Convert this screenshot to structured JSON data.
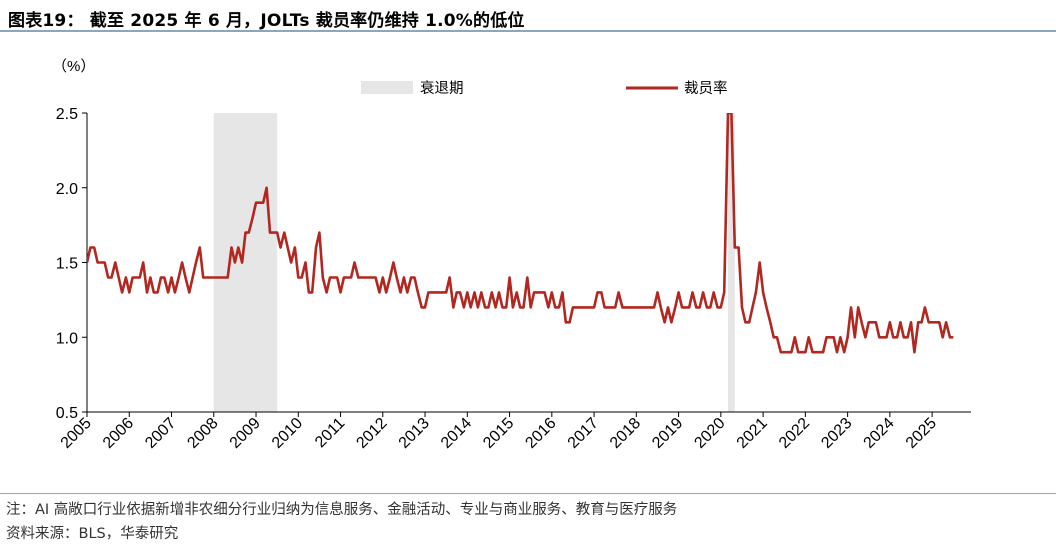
{
  "title": "图表19： 截至 2025 年 6 月，JOLTs 裁员率仍维持 1.0%的低位",
  "note": "注：AI 高敞口行业依据新增非农细分行业归纳为信息服务、金融活动、专业与商业服务、教育与医疗服务",
  "source": "资料来源：BLS，华泰研究",
  "chart_data": {
    "type": "line",
    "unit_label": "（%）",
    "ylim": [
      0.5,
      2.5
    ],
    "yticks": [
      "0.5",
      "1.0",
      "1.5",
      "2.0",
      "2.5"
    ],
    "xlim": [
      2005.0,
      2025.92
    ],
    "xticks": [
      "2005",
      "2006",
      "2007",
      "2008",
      "2009",
      "2010",
      "2011",
      "2012",
      "2013",
      "2014",
      "2015",
      "2016",
      "2017",
      "2018",
      "2019",
      "2020",
      "2021",
      "2022",
      "2023",
      "2024",
      "2025"
    ],
    "grid": false,
    "legend_position": "top",
    "recessions": {
      "name": "衰退期",
      "color": "#e6e6e6",
      "periods": [
        [
          2008.0,
          2009.5
        ],
        [
          2020.17,
          2020.33
        ]
      ]
    },
    "series": [
      {
        "name": "裁员率",
        "color": "#b2271f",
        "points": [
          [
            2005.0,
            1.5
          ],
          [
            2005.08,
            1.6
          ],
          [
            2005.17,
            1.6
          ],
          [
            2005.25,
            1.5
          ],
          [
            2005.33,
            1.5
          ],
          [
            2005.42,
            1.5
          ],
          [
            2005.5,
            1.4
          ],
          [
            2005.58,
            1.4
          ],
          [
            2005.67,
            1.5
          ],
          [
            2005.75,
            1.4
          ],
          [
            2005.83,
            1.3
          ],
          [
            2005.92,
            1.4
          ],
          [
            2006.0,
            1.3
          ],
          [
            2006.08,
            1.4
          ],
          [
            2006.17,
            1.4
          ],
          [
            2006.25,
            1.4
          ],
          [
            2006.33,
            1.5
          ],
          [
            2006.42,
            1.3
          ],
          [
            2006.5,
            1.4
          ],
          [
            2006.58,
            1.3
          ],
          [
            2006.67,
            1.3
          ],
          [
            2006.75,
            1.4
          ],
          [
            2006.83,
            1.4
          ],
          [
            2006.92,
            1.3
          ],
          [
            2007.0,
            1.4
          ],
          [
            2007.08,
            1.3
          ],
          [
            2007.17,
            1.4
          ],
          [
            2007.25,
            1.5
          ],
          [
            2007.33,
            1.4
          ],
          [
            2007.42,
            1.3
          ],
          [
            2007.5,
            1.4
          ],
          [
            2007.58,
            1.5
          ],
          [
            2007.67,
            1.6
          ],
          [
            2007.75,
            1.4
          ],
          [
            2007.83,
            1.4
          ],
          [
            2007.92,
            1.4
          ],
          [
            2008.0,
            1.4
          ],
          [
            2008.08,
            1.4
          ],
          [
            2008.17,
            1.4
          ],
          [
            2008.25,
            1.4
          ],
          [
            2008.33,
            1.4
          ],
          [
            2008.42,
            1.6
          ],
          [
            2008.5,
            1.5
          ],
          [
            2008.58,
            1.6
          ],
          [
            2008.67,
            1.5
          ],
          [
            2008.75,
            1.7
          ],
          [
            2008.83,
            1.7
          ],
          [
            2008.92,
            1.8
          ],
          [
            2009.0,
            1.9
          ],
          [
            2009.08,
            1.9
          ],
          [
            2009.17,
            1.9
          ],
          [
            2009.25,
            2.0
          ],
          [
            2009.33,
            1.7
          ],
          [
            2009.42,
            1.7
          ],
          [
            2009.5,
            1.7
          ],
          [
            2009.58,
            1.6
          ],
          [
            2009.67,
            1.7
          ],
          [
            2009.75,
            1.6
          ],
          [
            2009.83,
            1.5
          ],
          [
            2009.92,
            1.6
          ],
          [
            2010.0,
            1.4
          ],
          [
            2010.08,
            1.4
          ],
          [
            2010.17,
            1.5
          ],
          [
            2010.25,
            1.3
          ],
          [
            2010.33,
            1.3
          ],
          [
            2010.42,
            1.6
          ],
          [
            2010.5,
            1.7
          ],
          [
            2010.58,
            1.4
          ],
          [
            2010.67,
            1.3
          ],
          [
            2010.75,
            1.4
          ],
          [
            2010.83,
            1.4
          ],
          [
            2010.92,
            1.4
          ],
          [
            2011.0,
            1.3
          ],
          [
            2011.08,
            1.4
          ],
          [
            2011.17,
            1.4
          ],
          [
            2011.25,
            1.4
          ],
          [
            2011.33,
            1.5
          ],
          [
            2011.42,
            1.4
          ],
          [
            2011.5,
            1.4
          ],
          [
            2011.58,
            1.4
          ],
          [
            2011.67,
            1.4
          ],
          [
            2011.75,
            1.4
          ],
          [
            2011.83,
            1.4
          ],
          [
            2011.92,
            1.3
          ],
          [
            2012.0,
            1.4
          ],
          [
            2012.08,
            1.3
          ],
          [
            2012.17,
            1.4
          ],
          [
            2012.25,
            1.5
          ],
          [
            2012.33,
            1.4
          ],
          [
            2012.42,
            1.3
          ],
          [
            2012.5,
            1.4
          ],
          [
            2012.58,
            1.3
          ],
          [
            2012.67,
            1.4
          ],
          [
            2012.75,
            1.4
          ],
          [
            2012.83,
            1.3
          ],
          [
            2012.92,
            1.2
          ],
          [
            2013.0,
            1.2
          ],
          [
            2013.08,
            1.3
          ],
          [
            2013.17,
            1.3
          ],
          [
            2013.25,
            1.3
          ],
          [
            2013.33,
            1.3
          ],
          [
            2013.42,
            1.3
          ],
          [
            2013.5,
            1.3
          ],
          [
            2013.58,
            1.4
          ],
          [
            2013.67,
            1.2
          ],
          [
            2013.75,
            1.3
          ],
          [
            2013.83,
            1.3
          ],
          [
            2013.92,
            1.2
          ],
          [
            2014.0,
            1.3
          ],
          [
            2014.08,
            1.2
          ],
          [
            2014.17,
            1.3
          ],
          [
            2014.25,
            1.2
          ],
          [
            2014.33,
            1.3
          ],
          [
            2014.42,
            1.2
          ],
          [
            2014.5,
            1.2
          ],
          [
            2014.58,
            1.3
          ],
          [
            2014.67,
            1.2
          ],
          [
            2014.75,
            1.3
          ],
          [
            2014.83,
            1.2
          ],
          [
            2014.92,
            1.2
          ],
          [
            2015.0,
            1.4
          ],
          [
            2015.08,
            1.2
          ],
          [
            2015.17,
            1.3
          ],
          [
            2015.25,
            1.2
          ],
          [
            2015.33,
            1.2
          ],
          [
            2015.42,
            1.4
          ],
          [
            2015.5,
            1.2
          ],
          [
            2015.58,
            1.3
          ],
          [
            2015.67,
            1.3
          ],
          [
            2015.75,
            1.3
          ],
          [
            2015.83,
            1.3
          ],
          [
            2015.92,
            1.2
          ],
          [
            2016.0,
            1.3
          ],
          [
            2016.08,
            1.2
          ],
          [
            2016.17,
            1.2
          ],
          [
            2016.25,
            1.3
          ],
          [
            2016.33,
            1.1
          ],
          [
            2016.42,
            1.1
          ],
          [
            2016.5,
            1.2
          ],
          [
            2016.58,
            1.2
          ],
          [
            2016.67,
            1.2
          ],
          [
            2016.75,
            1.2
          ],
          [
            2016.83,
            1.2
          ],
          [
            2016.92,
            1.2
          ],
          [
            2017.0,
            1.2
          ],
          [
            2017.08,
            1.3
          ],
          [
            2017.17,
            1.3
          ],
          [
            2017.25,
            1.2
          ],
          [
            2017.33,
            1.2
          ],
          [
            2017.42,
            1.2
          ],
          [
            2017.5,
            1.2
          ],
          [
            2017.58,
            1.3
          ],
          [
            2017.67,
            1.2
          ],
          [
            2017.75,
            1.2
          ],
          [
            2017.83,
            1.2
          ],
          [
            2017.92,
            1.2
          ],
          [
            2018.0,
            1.2
          ],
          [
            2018.08,
            1.2
          ],
          [
            2018.17,
            1.2
          ],
          [
            2018.25,
            1.2
          ],
          [
            2018.33,
            1.2
          ],
          [
            2018.42,
            1.2
          ],
          [
            2018.5,
            1.3
          ],
          [
            2018.58,
            1.2
          ],
          [
            2018.67,
            1.1
          ],
          [
            2018.75,
            1.2
          ],
          [
            2018.83,
            1.1
          ],
          [
            2018.92,
            1.2
          ],
          [
            2019.0,
            1.3
          ],
          [
            2019.08,
            1.2
          ],
          [
            2019.17,
            1.2
          ],
          [
            2019.25,
            1.2
          ],
          [
            2019.33,
            1.3
          ],
          [
            2019.42,
            1.2
          ],
          [
            2019.5,
            1.2
          ],
          [
            2019.58,
            1.3
          ],
          [
            2019.67,
            1.2
          ],
          [
            2019.75,
            1.2
          ],
          [
            2019.83,
            1.3
          ],
          [
            2019.92,
            1.2
          ],
          [
            2020.0,
            1.2
          ],
          [
            2020.08,
            1.3
          ],
          [
            2020.17,
            2.5
          ],
          [
            2020.25,
            2.5
          ],
          [
            2020.33,
            1.6
          ],
          [
            2020.42,
            1.6
          ],
          [
            2020.5,
            1.2
          ],
          [
            2020.58,
            1.1
          ],
          [
            2020.67,
            1.1
          ],
          [
            2020.75,
            1.2
          ],
          [
            2020.83,
            1.3
          ],
          [
            2020.92,
            1.5
          ],
          [
            2021.0,
            1.3
          ],
          [
            2021.08,
            1.2
          ],
          [
            2021.17,
            1.1
          ],
          [
            2021.25,
            1.0
          ],
          [
            2021.33,
            1.0
          ],
          [
            2021.42,
            0.9
          ],
          [
            2021.5,
            0.9
          ],
          [
            2021.58,
            0.9
          ],
          [
            2021.67,
            0.9
          ],
          [
            2021.75,
            1.0
          ],
          [
            2021.83,
            0.9
          ],
          [
            2021.92,
            0.9
          ],
          [
            2022.0,
            0.9
          ],
          [
            2022.08,
            1.0
          ],
          [
            2022.17,
            0.9
          ],
          [
            2022.25,
            0.9
          ],
          [
            2022.33,
            0.9
          ],
          [
            2022.42,
            0.9
          ],
          [
            2022.5,
            1.0
          ],
          [
            2022.58,
            1.0
          ],
          [
            2022.67,
            1.0
          ],
          [
            2022.75,
            0.9
          ],
          [
            2022.83,
            1.0
          ],
          [
            2022.92,
            0.9
          ],
          [
            2023.0,
            1.0
          ],
          [
            2023.08,
            1.2
          ],
          [
            2023.17,
            1.0
          ],
          [
            2023.25,
            1.2
          ],
          [
            2023.33,
            1.1
          ],
          [
            2023.42,
            1.0
          ],
          [
            2023.5,
            1.1
          ],
          [
            2023.58,
            1.1
          ],
          [
            2023.67,
            1.1
          ],
          [
            2023.75,
            1.0
          ],
          [
            2023.83,
            1.0
          ],
          [
            2023.92,
            1.0
          ],
          [
            2024.0,
            1.1
          ],
          [
            2024.08,
            1.0
          ],
          [
            2024.17,
            1.0
          ],
          [
            2024.25,
            1.1
          ],
          [
            2024.33,
            1.0
          ],
          [
            2024.42,
            1.0
          ],
          [
            2024.5,
            1.1
          ],
          [
            2024.58,
            0.9
          ],
          [
            2024.67,
            1.1
          ],
          [
            2024.75,
            1.1
          ],
          [
            2024.83,
            1.2
          ],
          [
            2024.92,
            1.1
          ],
          [
            2025.0,
            1.1
          ],
          [
            2025.08,
            1.1
          ],
          [
            2025.17,
            1.1
          ],
          [
            2025.25,
            1.0
          ],
          [
            2025.33,
            1.1
          ],
          [
            2025.42,
            1.0
          ],
          [
            2025.5,
            1.0
          ]
        ]
      }
    ]
  }
}
